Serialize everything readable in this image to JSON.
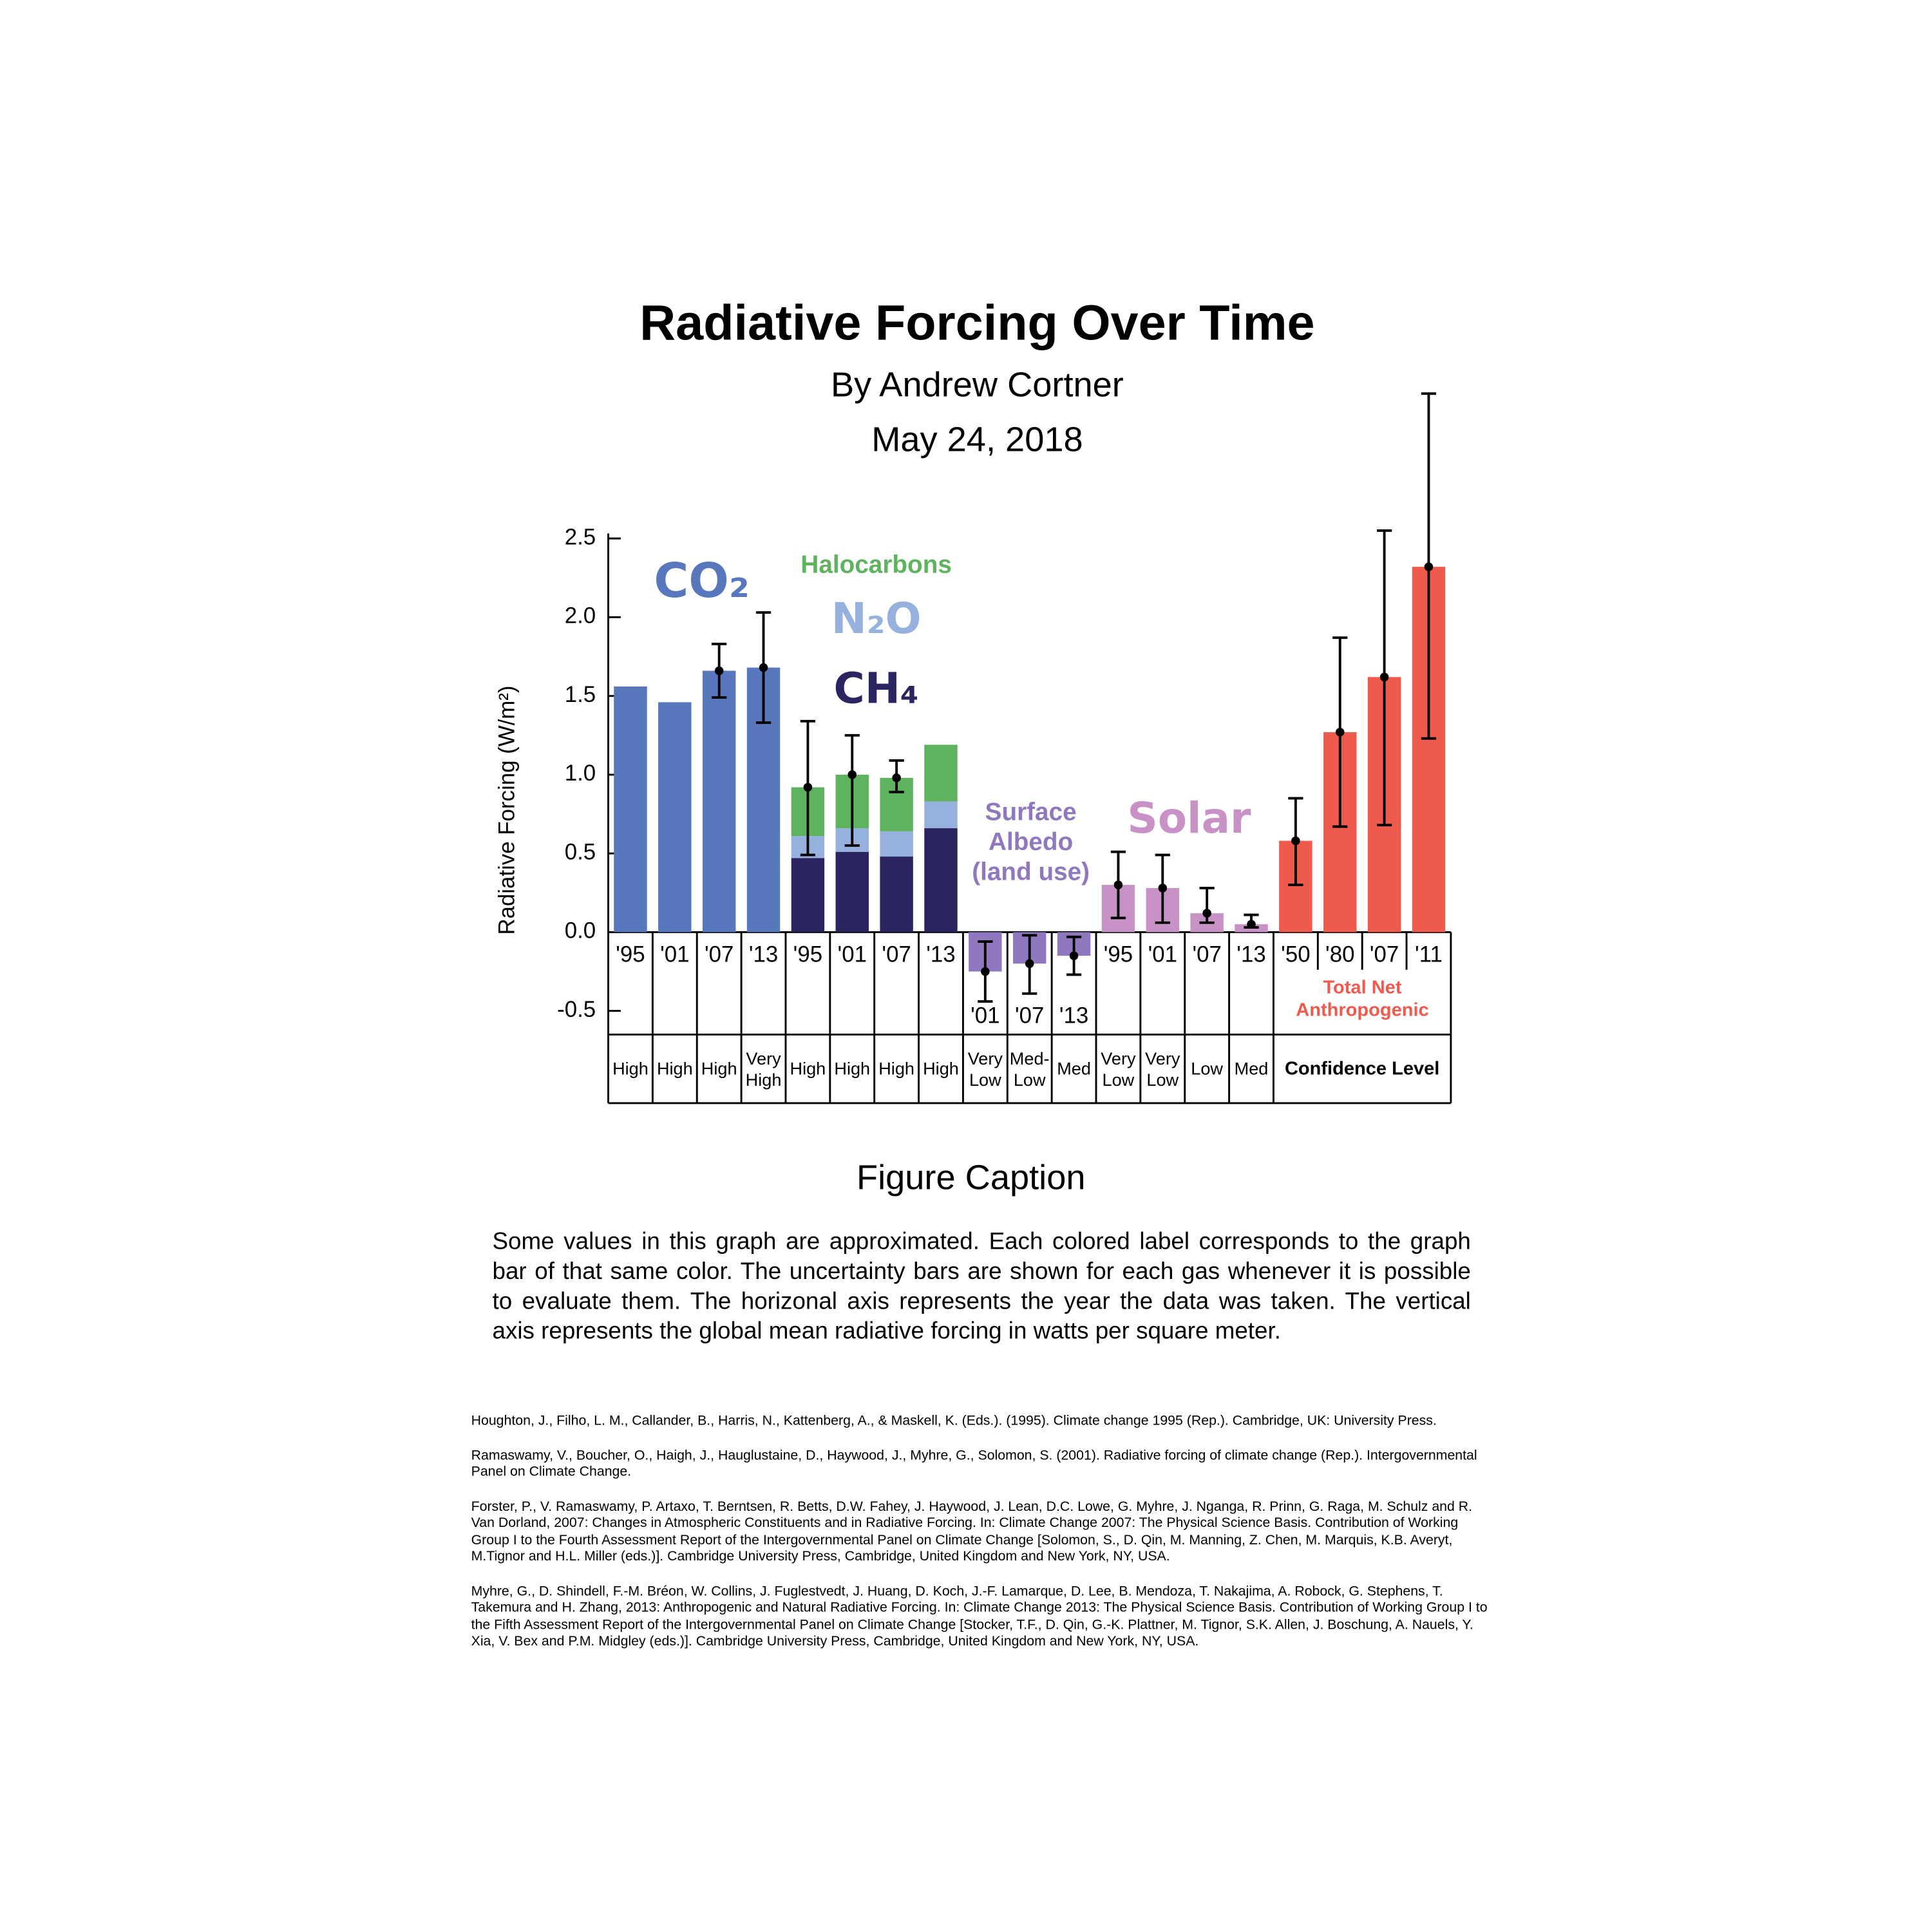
{
  "chart_data": {
    "type": "bar",
    "title": "Radiative Forcing Over Time",
    "subtitle": "By Andrew Cortner",
    "date": "May 24, 2018",
    "y_label": "Radiative Forcing (W/m²)",
    "ylim": [
      -0.5,
      2.5
    ],
    "yticks": [
      2.5,
      {
        "value": 2,
        "label": "2.0"
      },
      1.5,
      {
        "value": 1,
        "label": "1.0"
      },
      0.5,
      {
        "value": 0,
        "label": "0.0"
      },
      -0.5
    ],
    "confidence_label": "Confidence Level",
    "groups": [
      {
        "categories": [
          "'95",
          "'01",
          "'07",
          "'13"
        ],
        "series": [
          {
            "name": "CO₂",
            "color": "#5877bd",
            "values": [
              1.56,
              1.46,
              1.66,
              1.68
            ]
          }
        ],
        "error_low": [
          null,
          null,
          1.49,
          1.33
        ],
        "error_high": [
          null,
          null,
          1.83,
          2.03
        ],
        "confidence": [
          "High",
          "High",
          "High",
          "Very High"
        ]
      },
      {
        "categories": [
          "'95",
          "'01",
          "'07",
          "'13"
        ],
        "series": [
          {
            "name": "CH₄",
            "color": "#2a2460",
            "values": [
              0.47,
              0.51,
              0.48,
              0.66
            ]
          },
          {
            "name": "N₂O",
            "color": "#96b1dd",
            "values": [
              0.14,
              0.15,
              0.16,
              0.17
            ]
          },
          {
            "name": "Halocarbons",
            "color": "#5fb35f",
            "values": [
              0.31,
              0.34,
              0.34,
              0.36
            ]
          }
        ],
        "error_low": [
          0.49,
          0.55,
          0.89,
          null
        ],
        "error_high": [
          1.34,
          1.25,
          1.09,
          null
        ],
        "confidence": [
          "High",
          "High",
          "High",
          "High"
        ]
      },
      {
        "categories": [
          "'01",
          "'07",
          "'13"
        ],
        "series": [
          {
            "name": "Surface Albedo (land use)",
            "color": "#8f78bd",
            "values": [
              -0.25,
              -0.2,
              -0.15
            ]
          }
        ],
        "error_low": [
          -0.44,
          -0.39,
          -0.27
        ],
        "error_high": [
          -0.06,
          -0.02,
          -0.03
        ],
        "confidence": [
          "Very Low",
          "Med-Low",
          "Med"
        ]
      },
      {
        "categories": [
          "'95",
          "'01",
          "'07",
          "'13"
        ],
        "series": [
          {
            "name": "Solar",
            "color": "#c992c6",
            "values": [
              0.3,
              0.28,
              0.12,
              0.05
            ]
          }
        ],
        "error_low": [
          0.09,
          0.06,
          0.06,
          0.03
        ],
        "error_high": [
          0.51,
          0.49,
          0.28,
          0.11
        ],
        "confidence": [
          "Very Low",
          "Very Low",
          "Low",
          "Med"
        ]
      },
      {
        "categories": [
          "'50",
          "'80",
          "'07",
          "'11"
        ],
        "series": [
          {
            "name": "Total Net Anthropogenic",
            "color": "#ee5a4c",
            "values": [
              0.58,
              1.27,
              1.62,
              2.32
            ]
          }
        ],
        "error_low": [
          0.3,
          0.67,
          0.68,
          1.23
        ],
        "error_high": [
          0.85,
          1.87,
          2.55,
          3.42
        ]
      }
    ]
  },
  "caption": {
    "title": "Figure Caption",
    "text": "Some values in this graph are approximated. Each colored label corresponds to the graph bar of that same color. The uncertainty bars are shown for each gas whenever it is possible to evaluate them. The horizonal axis represents the year the data was taken. The vertical axis represents the global mean radiative forcing in watts per square meter."
  },
  "references": [
    "Houghton, J., Filho, L. M., Callander, B., Harris, N., Kattenberg, A., & Maskell, K. (Eds.). (1995). Climate change 1995 (Rep.). Cambridge, UK: University Press.",
    "Ramaswamy, V., Boucher, O., Haigh, J., Hauglustaine, D., Haywood, J., Myhre, G., Solomon, S. (2001). Radiative forcing of climate change (Rep.). Intergovernmental Panel on Climate Change.",
    "Forster, P., V. Ramaswamy, P. Artaxo, T. Berntsen, R. Betts, D.W. Fahey, J. Haywood, J. Lean, D.C. Lowe, G. Myhre, J. Nganga, R. Prinn, G. Raga, M. Schulz and R. Van Dorland, 2007: Changes in Atmospheric Constituents and in Radiative Forcing. In: Climate Change 2007: The Physical Science Basis. Contribution of Working Group I to the Fourth Assessment Report of the Intergovernmental Panel on Climate Change [Solomon, S., D. Qin, M. Manning, Z. Chen, M. Marquis, K.B. Averyt, M.Tignor and H.L. Miller (eds.)]. Cambridge University Press, Cambridge, United Kingdom and New York, NY, USA.",
    "Myhre, G., D. Shindell, F.-M. Bréon, W. Collins, J. Fuglestvedt, J. Huang, D. Koch, J.-F. Lamarque, D. Lee, B. Mendoza, T. Nakajima, A. Robock, G. Stephens, T. Takemura and H. Zhang, 2013: Anthropogenic and Natural Radiative Forcing. In: Climate Change 2013: The Physical Science Basis. Contribution of Working Group I to the Fifth Assessment Report of the Intergovernmental Panel on Climate Change [Stocker, T.F., D. Qin, G.-K. Plattner, M. Tignor, S.K. Allen, J. Boschung, A. Nauels, Y. Xia, V. Bex and P.M. Midgley (eds.)]. Cambridge University Press, Cambridge, United Kingdom and New York, NY, USA."
  ]
}
